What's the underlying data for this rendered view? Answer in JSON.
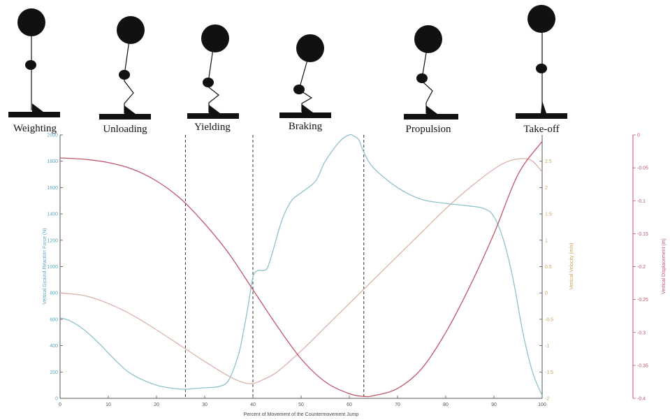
{
  "phases": [
    {
      "label": "Weighting",
      "figure": "standing-upright"
    },
    {
      "label": "Unloading",
      "figure": "knees-bending"
    },
    {
      "label": "Yielding",
      "figure": "knees-bent"
    },
    {
      "label": "Braking",
      "figure": "deep-squat"
    },
    {
      "label": "Propulsion",
      "figure": "knees-extending"
    },
    {
      "label": "Take-off",
      "figure": "standing-upright"
    }
  ],
  "colors": {
    "force": "#8fc2cc",
    "velocity": "#d9b3a8",
    "displacement": "#c0566a",
    "axis": "#555555",
    "force_label": "#55a8c0",
    "velocity_label": "#c9a15a",
    "displacement_label": "#c0566a"
  },
  "chart_data": {
    "type": "line",
    "xlabel": "Percent of Movement of the Countermovement Jump",
    "xlim": [
      0,
      100
    ],
    "x_ticks": [
      0,
      10,
      20,
      30,
      40,
      50,
      60,
      70,
      80,
      90,
      100
    ],
    "phase_boundaries": [
      26,
      40,
      63
    ],
    "axes": {
      "left": {
        "label": "Vertical Ground Reaction Force (N)",
        "ylim": [
          0,
          2000
        ],
        "ticks": [
          0,
          200,
          400,
          600,
          800,
          1000,
          1200,
          1400,
          1600,
          1800,
          2000
        ]
      },
      "right_inner": {
        "label": "Vertical Velocity (m/s)",
        "ylim": [
          -2,
          3
        ],
        "ticks": [
          -2,
          -1.5,
          -1,
          -0.5,
          0,
          0.5,
          1,
          1.5,
          2,
          2.5
        ]
      },
      "right_outer": {
        "label": "Vertical Displacement (m)",
        "ylim": [
          -0.4,
          0
        ],
        "ticks": [
          -0.4,
          -0.35,
          -0.3,
          -0.25,
          -0.2,
          -0.15,
          -0.1,
          -0.05,
          0
        ]
      }
    },
    "series": [
      {
        "axis": "left",
        "x": [
          0,
          2,
          5,
          8,
          12,
          15,
          20,
          25,
          28,
          30,
          33,
          35,
          37,
          38,
          39,
          40,
          41,
          42,
          43,
          44,
          46,
          48,
          50,
          53,
          55,
          58,
          60,
          61,
          62,
          63,
          65,
          70,
          75,
          80,
          85,
          88,
          90,
          92,
          94,
          96,
          98,
          100
        ],
        "y": [
          610,
          590,
          520,
          420,
          270,
          180,
          100,
          70,
          75,
          80,
          90,
          140,
          330,
          500,
          700,
          920,
          970,
          970,
          990,
          1100,
          1350,
          1500,
          1560,
          1650,
          1800,
          1950,
          2000,
          1990,
          1960,
          1870,
          1750,
          1600,
          1510,
          1480,
          1460,
          1440,
          1380,
          1200,
          900,
          500,
          200,
          20
        ]
      },
      {
        "axis": "right_inner",
        "x": [
          0,
          5,
          10,
          15,
          20,
          25,
          30,
          35,
          38,
          40,
          42,
          45,
          50,
          55,
          60,
          65,
          70,
          75,
          80,
          85,
          90,
          93,
          96,
          98,
          100
        ],
        "y": [
          0,
          -0.05,
          -0.2,
          -0.42,
          -0.7,
          -1.0,
          -1.3,
          -1.58,
          -1.7,
          -1.72,
          -1.65,
          -1.5,
          -1.1,
          -0.65,
          -0.2,
          0.25,
          0.7,
          1.15,
          1.6,
          2.0,
          2.35,
          2.5,
          2.55,
          2.5,
          2.3
        ]
      },
      {
        "axis": "right_outer",
        "x": [
          0,
          5,
          10,
          15,
          20,
          25,
          30,
          35,
          40,
          45,
          50,
          55,
          60,
          63,
          65,
          70,
          75,
          80,
          85,
          90,
          95,
          100
        ],
        "y": [
          -0.035,
          -0.037,
          -0.042,
          -0.052,
          -0.07,
          -0.097,
          -0.135,
          -0.18,
          -0.235,
          -0.29,
          -0.34,
          -0.375,
          -0.393,
          -0.397,
          -0.396,
          -0.385,
          -0.355,
          -0.3,
          -0.23,
          -0.15,
          -0.06,
          -0.01
        ]
      }
    ]
  }
}
